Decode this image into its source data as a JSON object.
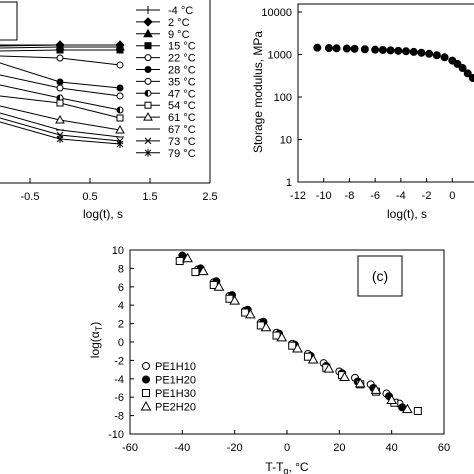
{
  "chart_data": [
    {
      "type": "line",
      "xlabel": "log(t), s",
      "xlim": [
        -1.0,
        2.5
      ],
      "xticks": [
        "-0.5",
        "0.5",
        "1.5",
        "2.5"
      ],
      "xtick_values": [
        -0.5,
        0.5,
        1.5,
        2.5
      ],
      "legend": "right",
      "series": [
        {
          "name": "-4 °C",
          "marker": "tick",
          "x": [
            -1.0,
            0.0,
            1.0
          ],
          "y": [
            45,
            45,
            45
          ]
        },
        {
          "name": "2 °C",
          "marker": "diamond",
          "x": [
            -1.0,
            0.0,
            1.0
          ],
          "y": [
            46,
            45,
            45
          ]
        },
        {
          "name": "9 °C",
          "marker": "triangle",
          "x": [
            -1.0,
            0.0,
            1.0
          ],
          "y": [
            48,
            47,
            47
          ]
        },
        {
          "name": "15 °C",
          "marker": "square",
          "x": [
            -1.0,
            0.0,
            1.0
          ],
          "y": [
            51,
            50,
            50
          ]
        },
        {
          "name": "22 °C",
          "marker": "circle-open",
          "x": [
            -1.0,
            0.0,
            1.0
          ],
          "y": [
            56,
            58,
            65
          ]
        },
        {
          "name": "28 °C",
          "marker": "circle",
          "x": [
            -1.0,
            0.0,
            1.0
          ],
          "y": [
            63,
            82,
            88
          ]
        },
        {
          "name": "35 °C",
          "marker": "circle-open",
          "x": [
            -1.0,
            0.0,
            1.0
          ],
          "y": [
            75,
            88,
            96
          ]
        },
        {
          "name": "47 °C",
          "marker": "circle-half",
          "x": [
            -1.0,
            0.0,
            1.0
          ],
          "y": [
            85,
            98,
            110
          ]
        },
        {
          "name": "54 °C",
          "marker": "square-open",
          "x": [
            -1.0,
            0.0,
            1.0
          ],
          "y": [
            96,
            103,
            118
          ]
        },
        {
          "name": "61 °C",
          "marker": "triangle-open",
          "x": [
            -1.0,
            0.0,
            1.0
          ],
          "y": [
            106,
            120,
            130
          ]
        },
        {
          "name": "67 °C",
          "marker": "dash",
          "x": [
            -1.0,
            0.0,
            1.0
          ],
          "y": [
            113,
            130,
            137
          ]
        },
        {
          "name": "73 °C",
          "marker": "x",
          "x": [
            -1.0,
            0.0,
            1.0
          ],
          "y": [
            118,
            135,
            141
          ]
        },
        {
          "name": "79 °C",
          "marker": "star",
          "x": [
            -1.0,
            0.0,
            1.0
          ],
          "y": [
            122,
            139,
            144
          ]
        }
      ]
    },
    {
      "type": "scatter",
      "xlabel": "log(t), s",
      "ylabel": "Storage modulus, MPa",
      "xlim": [
        -12,
        2
      ],
      "ylim": [
        1,
        10000
      ],
      "yscale": "log",
      "xticks": [
        "-12",
        "-10",
        "-8",
        "-6",
        "-4",
        "-2",
        "0",
        "2"
      ],
      "xtick_values": [
        -12,
        -10,
        -8,
        -6,
        -4,
        -2,
        0,
        2
      ],
      "yticks": [
        "1",
        "10",
        "100",
        "1000",
        "10000"
      ],
      "ytick_values": [
        1,
        10,
        100,
        1000,
        10000
      ],
      "series": [
        {
          "x": [
            -10.5,
            -9.6,
            -9.0,
            -8.2,
            -7.6,
            -6.8,
            -6.0,
            -5.4,
            -4.8,
            -4.2,
            -3.6,
            -3.0,
            -2.4,
            -1.8,
            -1.2,
            -0.6,
            0.0,
            0.4,
            0.8,
            1.2,
            1.6,
            2.0,
            2.4
          ],
          "y": [
            1450,
            1420,
            1400,
            1380,
            1360,
            1330,
            1300,
            1280,
            1250,
            1220,
            1190,
            1150,
            1100,
            1040,
            960,
            860,
            720,
            600,
            480,
            360,
            280,
            210,
            160
          ]
        }
      ]
    },
    {
      "type": "scatter",
      "xlabel": "T-T",
      "xlabel_sub": "g",
      "xlabel_unit": ", °C",
      "ylabel": "log(α",
      "ylabel_sub": "T",
      "ylabel_end": ")",
      "panel_label": "(c)",
      "xlim": [
        -60,
        60
      ],
      "ylim": [
        -10,
        10
      ],
      "xticks": [
        "-60",
        "-40",
        "-20",
        "0",
        "20",
        "40",
        "60"
      ],
      "xtick_values": [
        -60,
        -40,
        -20,
        0,
        20,
        40,
        60
      ],
      "yticks": [
        "-10",
        "-8",
        "-6",
        "-4",
        "-2",
        "0",
        "2",
        "4",
        "6",
        "8",
        "10"
      ],
      "ytick_values": [
        -10,
        -8,
        -6,
        -4,
        -2,
        0,
        2,
        4,
        6,
        8,
        10
      ],
      "legend": "bottom-left",
      "series": [
        {
          "name": "PE1H10",
          "marker": "circle-open",
          "x": [
            -40,
            -34,
            -28,
            -22,
            -16,
            -10,
            -4,
            2,
            8,
            14,
            20,
            26,
            32,
            38,
            43
          ],
          "y": [
            9.0,
            7.9,
            6.5,
            5.0,
            3.4,
            2.1,
            1.0,
            -0.2,
            -1.3,
            -2.3,
            -3.2,
            -3.9,
            -4.6,
            -5.6,
            -6.7
          ]
        },
        {
          "name": "PE1H20",
          "marker": "circle",
          "x": [
            -40,
            -33,
            -27,
            -21,
            -15,
            -9,
            -3,
            3,
            9,
            15,
            21,
            27,
            33,
            39,
            44
          ],
          "y": [
            9.4,
            8.0,
            6.6,
            5.1,
            3.5,
            2.2,
            0.9,
            -0.3,
            -1.5,
            -2.6,
            -3.4,
            -4.3,
            -5.0,
            -5.9,
            -7.1
          ]
        },
        {
          "name": "PE1H30",
          "marker": "square-open",
          "x": [
            -41,
            -35,
            -28,
            -22,
            -16,
            -10,
            -4,
            2,
            8,
            15,
            21,
            28,
            34,
            41,
            50
          ],
          "y": [
            8.8,
            7.6,
            6.2,
            4.7,
            3.2,
            1.8,
            0.7,
            -0.4,
            -1.6,
            -2.8,
            -3.6,
            -4.6,
            -5.4,
            -6.6,
            -7.5
          ]
        },
        {
          "name": "PE2H20",
          "marker": "triangle-open",
          "x": [
            -38,
            -32,
            -26,
            -20,
            -14,
            -8,
            -2,
            4,
            10,
            16,
            22,
            28,
            34,
            40,
            46
          ],
          "y": [
            9.1,
            7.7,
            6.0,
            4.5,
            3.0,
            1.6,
            0.5,
            -0.7,
            -1.9,
            -2.9,
            -3.8,
            -4.5,
            -5.2,
            -6.3,
            -7.3
          ]
        }
      ]
    }
  ]
}
